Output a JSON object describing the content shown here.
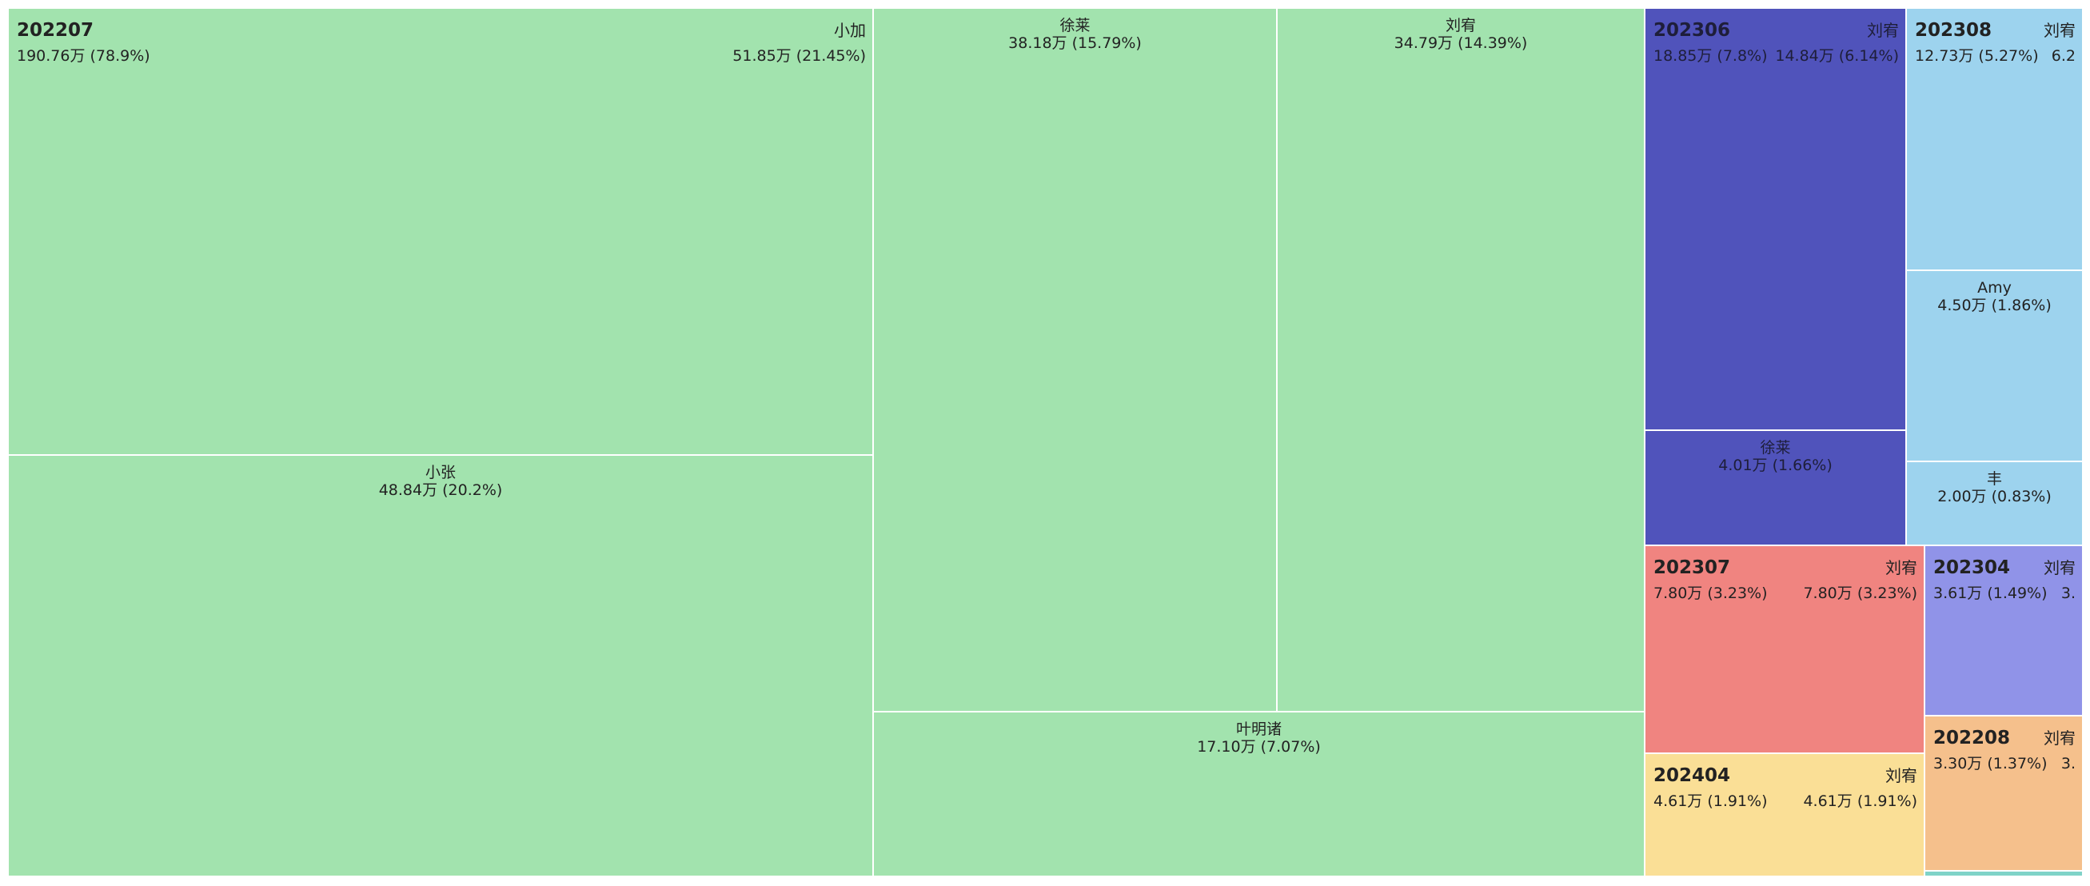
{
  "chart_data": {
    "type": "treemap",
    "unit": "万",
    "groups": [
      {
        "name": "202207",
        "value_label": "190.76万 (78.9%)",
        "color": "#a2e3ae",
        "children": [
          {
            "name": "小加",
            "value_label": "51.85万 (21.45%)"
          },
          {
            "name": "小张",
            "value_label": "48.84万 (20.2%)"
          },
          {
            "name": "徐莱",
            "value_label": "38.18万 (15.79%)"
          },
          {
            "name": "刘宥",
            "value_label": "34.79万 (14.39%)"
          },
          {
            "name": "叶明诸",
            "value_label": "17.10万 (7.07%)"
          }
        ]
      },
      {
        "name": "202306",
        "value_label": "18.85万 (7.8%)",
        "color": "#5053bb",
        "children": [
          {
            "name": "刘宥",
            "value_label": "14.84万 (6.14%)"
          },
          {
            "name": "徐莱",
            "value_label": "4.01万 (1.66%)"
          }
        ]
      },
      {
        "name": "202308",
        "value_label": "12.73万 (5.27%)",
        "color": "#9dd3ee",
        "children": [
          {
            "name": "刘宥",
            "value_label": "6.2"
          },
          {
            "name": "Amy",
            "value_label": "4.50万 (1.86%)"
          },
          {
            "name": "丰",
            "value_label": "2.00万 (0.83%)"
          }
        ]
      },
      {
        "name": "202307",
        "value_label": "7.80万 (3.23%)",
        "color": "#f08480",
        "children": [
          {
            "name": "刘宥",
            "value_label": "7.80万 (3.23%)"
          }
        ]
      },
      {
        "name": "202404",
        "value_label": "4.61万 (1.91%)",
        "color": "#fadf96",
        "children": [
          {
            "name": "刘宥",
            "value_label": "4.61万 (1.91%)"
          }
        ]
      },
      {
        "name": "202304",
        "value_label": "3.61万 (1.49%)",
        "color": "#9093e8",
        "children": [
          {
            "name": "刘宥",
            "value_label": "3."
          }
        ]
      },
      {
        "name": "202208",
        "value_label": "3.30万 (1.37%)",
        "color": "#f5c08c",
        "children": [
          {
            "name": "刘宥",
            "value_label": "3."
          }
        ]
      },
      {
        "name": "",
        "value_label": "",
        "color": "#7fd3c8",
        "children": [
          {
            "name": "",
            "value_label": ""
          }
        ]
      }
    ]
  }
}
